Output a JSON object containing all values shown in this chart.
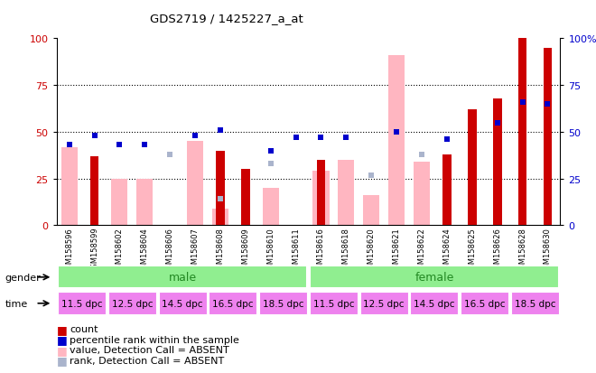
{
  "title": "GDS2719 / 1425227_a_at",
  "samples": [
    "GSM158596",
    "GSM158599",
    "GSM158602",
    "GSM158604",
    "GSM158606",
    "GSM158607",
    "GSM158608",
    "GSM158609",
    "GSM158610",
    "GSM158611",
    "GSM158616",
    "GSM158618",
    "GSM158620",
    "GSM158621",
    "GSM158622",
    "GSM158624",
    "GSM158625",
    "GSM158626",
    "GSM158628",
    "GSM158630"
  ],
  "red_bars": [
    0,
    37,
    0,
    0,
    0,
    0,
    40,
    30,
    0,
    0,
    35,
    0,
    0,
    0,
    0,
    38,
    62,
    68,
    100,
    95
  ],
  "blue_squares": [
    43,
    48,
    43,
    43,
    0,
    48,
    51,
    0,
    40,
    47,
    47,
    47,
    0,
    50,
    0,
    46,
    0,
    55,
    66,
    65
  ],
  "pink_bars": [
    42,
    0,
    25,
    25,
    0,
    45,
    9,
    0,
    20,
    0,
    29,
    35,
    16,
    91,
    34,
    0,
    0,
    0,
    0,
    0
  ],
  "lavender_squares": [
    0,
    0,
    0,
    0,
    38,
    0,
    14,
    0,
    33,
    0,
    0,
    0,
    27,
    0,
    38,
    0,
    0,
    0,
    0,
    0
  ],
  "ylim": [
    0,
    100
  ],
  "yticks": [
    0,
    25,
    50,
    75,
    100
  ],
  "red_color": "#cc0000",
  "blue_color": "#0000cc",
  "pink_color": "#ffb6c1",
  "lavender_color": "#aab4cc",
  "gender_green": "#90ee90",
  "time_purple": "#ee82ee",
  "bg_color": "#ffffff",
  "sample_bg": "#cccccc"
}
